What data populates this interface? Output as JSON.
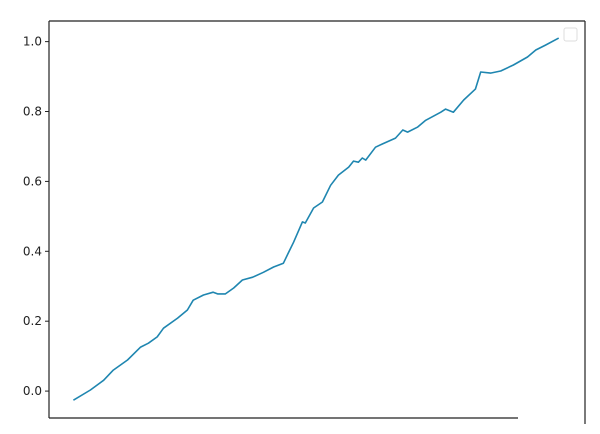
{
  "chart_data": {
    "type": "line",
    "title": "",
    "xlabel": "",
    "ylabel": "",
    "xlim": [
      -5,
      105
    ],
    "ylim": [
      -0.077,
      1.059
    ],
    "yticks": [
      0.0,
      0.2,
      0.4,
      0.6,
      0.8,
      1.0
    ],
    "ytick_labels": [
      "0.0",
      "0.2",
      "0.4",
      "0.6",
      "0.8",
      "1.0"
    ],
    "xticks_visible": false,
    "grid": false,
    "legend": {
      "placement": "top-right",
      "entries": []
    },
    "series": [
      {
        "color": "#1f86b0",
        "x": [
          0,
          3.5,
          6.2,
          8.2,
          11.1,
          13.8,
          15.4,
          17.2,
          18.5,
          21.4,
          23.4,
          24.6,
          26.7,
          28.7,
          29.6,
          31.2,
          32.9,
          34.7,
          36.8,
          39.0,
          41.1,
          43.1,
          44.1,
          45.2,
          47.0,
          47.6,
          49.3,
          51.1,
          52.8,
          54.4,
          56.5,
          57.5,
          58.5,
          59.3,
          60.0,
          62.0,
          63.4,
          66.1,
          67.6,
          68.6,
          70.6,
          72.3,
          75.4,
          76.4,
          78.0,
          80.1,
          82.5,
          83.6,
          85.6,
          87.7,
          90.3,
          93.2,
          94.9,
          96.9,
          99.6
        ],
        "y": [
          -0.026,
          0.003,
          0.031,
          0.06,
          0.089,
          0.126,
          0.137,
          0.155,
          0.18,
          0.209,
          0.232,
          0.26,
          0.275,
          0.283,
          0.278,
          0.278,
          0.295,
          0.318,
          0.326,
          0.34,
          0.355,
          0.366,
          0.395,
          0.426,
          0.484,
          0.481,
          0.524,
          0.541,
          0.589,
          0.618,
          0.641,
          0.658,
          0.655,
          0.667,
          0.661,
          0.698,
          0.707,
          0.724,
          0.747,
          0.741,
          0.755,
          0.775,
          0.798,
          0.807,
          0.798,
          0.833,
          0.864,
          0.913,
          0.91,
          0.916,
          0.933,
          0.956,
          0.976,
          0.99,
          1.01
        ]
      }
    ]
  }
}
